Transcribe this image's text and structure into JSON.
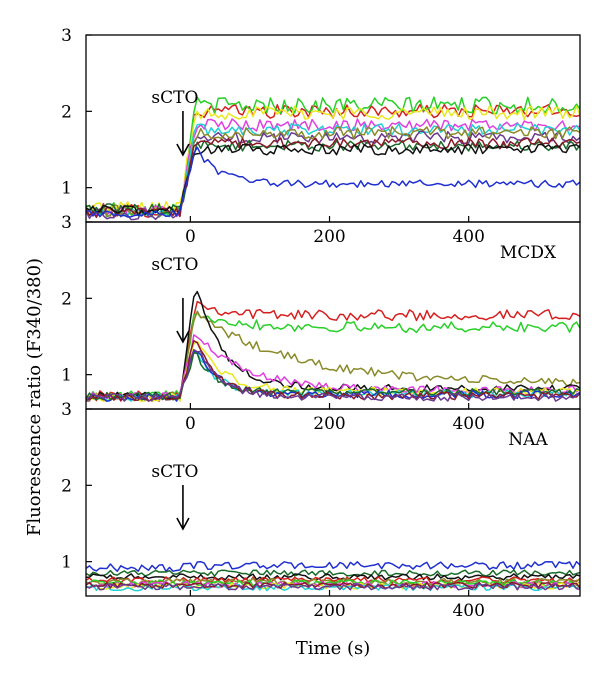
{
  "chart_data": {
    "type": "line",
    "ylabel": "Fluorescence ratio (F340/380)",
    "xlabel": "Time (s)",
    "xlim": [
      -150,
      560
    ],
    "xticks": [
      0,
      200,
      400
    ],
    "grid": false,
    "panels": [
      {
        "label": "",
        "ylim": [
          0.55,
          3
        ],
        "yticks": [
          1,
          2,
          3
        ],
        "arrow_label": "sCTO",
        "stimulus_time": -15,
        "series": [
          {
            "color": "#d62020",
            "baseline": 0.7,
            "plateau": 2.0,
            "peak": 2.0,
            "decay": 0,
            "noise": 0.09
          },
          {
            "color": "#28d028",
            "baseline": 0.72,
            "plateau": 2.08,
            "peak": 2.08,
            "decay": 0,
            "noise": 0.11
          },
          {
            "color": "#e8e820",
            "baseline": 0.74,
            "plateau": 1.98,
            "peak": 1.98,
            "decay": 0,
            "noise": 0.09
          },
          {
            "color": "#e040e0",
            "baseline": 0.7,
            "plateau": 1.82,
            "peak": 1.82,
            "decay": 0,
            "noise": 0.08
          },
          {
            "color": "#20d0d0",
            "baseline": 0.68,
            "plateau": 1.76,
            "peak": 1.76,
            "decay": 0,
            "noise": 0.08
          },
          {
            "color": "#6a3a90",
            "baseline": 0.66,
            "plateau": 1.66,
            "peak": 1.66,
            "decay": 0,
            "noise": 0.08
          },
          {
            "color": "#8a8a2a",
            "baseline": 0.7,
            "plateau": 1.72,
            "peak": 1.72,
            "decay": 0,
            "noise": 0.08
          },
          {
            "color": "#1a6a2a",
            "baseline": 0.72,
            "plateau": 1.55,
            "peak": 1.55,
            "decay": 0,
            "noise": 0.07
          },
          {
            "color": "#8a1a2a",
            "baseline": 0.68,
            "plateau": 1.58,
            "peak": 1.58,
            "decay": 0,
            "noise": 0.07
          },
          {
            "color": "#111111",
            "baseline": 0.7,
            "plateau": 1.5,
            "peak": 1.5,
            "decay": 0,
            "noise": 0.07
          },
          {
            "color": "#2030d0",
            "baseline": 0.66,
            "plateau": 1.05,
            "peak": 1.55,
            "decay": 30,
            "noise": 0.05
          }
        ]
      },
      {
        "label": "MCDX",
        "ylim": [
          0.55,
          3
        ],
        "yticks": [
          1,
          2,
          3
        ],
        "arrow_label": "sCTO",
        "stimulus_time": -15,
        "series": [
          {
            "color": "#d62020",
            "baseline": 0.72,
            "plateau": 1.78,
            "peak": 1.95,
            "decay": 40,
            "noise": 0.07
          },
          {
            "color": "#28d028",
            "baseline": 0.72,
            "plateau": 1.62,
            "peak": 1.85,
            "decay": 50,
            "noise": 0.07
          },
          {
            "color": "#8a8a2a",
            "baseline": 0.72,
            "plateau": 0.88,
            "peak": 1.8,
            "decay": 140,
            "noise": 0.06
          },
          {
            "color": "#111111",
            "baseline": 0.72,
            "plateau": 0.82,
            "peak": 2.18,
            "decay": 40,
            "noise": 0.05
          },
          {
            "color": "#e040e0",
            "baseline": 0.72,
            "plateau": 0.8,
            "peak": 1.55,
            "decay": 70,
            "noise": 0.05
          },
          {
            "color": "#e8e820",
            "baseline": 0.7,
            "plateau": 0.78,
            "peak": 1.45,
            "decay": 40,
            "noise": 0.05
          },
          {
            "color": "#20d0d0",
            "baseline": 0.7,
            "plateau": 0.75,
            "peak": 1.35,
            "decay": 30,
            "noise": 0.05
          },
          {
            "color": "#2030d0",
            "baseline": 0.7,
            "plateau": 0.74,
            "peak": 1.4,
            "decay": 30,
            "noise": 0.05
          },
          {
            "color": "#1a6a2a",
            "baseline": 0.72,
            "plateau": 0.77,
            "peak": 1.3,
            "decay": 30,
            "noise": 0.05
          },
          {
            "color": "#8a1a2a",
            "baseline": 0.7,
            "plateau": 0.72,
            "peak": 1.5,
            "decay": 30,
            "noise": 0.05
          },
          {
            "color": "#6a3a90",
            "baseline": 0.7,
            "plateau": 0.7,
            "peak": 1.4,
            "decay": 35,
            "noise": 0.05
          }
        ]
      },
      {
        "label": "NAA",
        "ylim": [
          0.55,
          3
        ],
        "yticks": [
          1,
          2,
          3
        ],
        "arrow_label": "sCTO",
        "stimulus_time": -15,
        "series": [
          {
            "color": "#2030d0",
            "baseline": 0.92,
            "plateau": 0.95,
            "peak": 0.95,
            "decay": 0,
            "noise": 0.05
          },
          {
            "color": "#1a6a2a",
            "baseline": 0.85,
            "plateau": 0.85,
            "peak": 0.85,
            "decay": 0,
            "noise": 0.04
          },
          {
            "color": "#111111",
            "baseline": 0.8,
            "plateau": 0.8,
            "peak": 0.8,
            "decay": 0,
            "noise": 0.04
          },
          {
            "color": "#d62020",
            "baseline": 0.76,
            "plateau": 0.76,
            "peak": 0.76,
            "decay": 0,
            "noise": 0.04
          },
          {
            "color": "#8a8a2a",
            "baseline": 0.74,
            "plateau": 0.74,
            "peak": 0.74,
            "decay": 0,
            "noise": 0.04
          },
          {
            "color": "#28d028",
            "baseline": 0.72,
            "plateau": 0.72,
            "peak": 0.72,
            "decay": 0,
            "noise": 0.04
          },
          {
            "color": "#e040e0",
            "baseline": 0.7,
            "plateau": 0.7,
            "peak": 0.7,
            "decay": 0,
            "noise": 0.04
          },
          {
            "color": "#e8e820",
            "baseline": 0.68,
            "plateau": 0.68,
            "peak": 0.68,
            "decay": 0,
            "noise": 0.04
          },
          {
            "color": "#20d0d0",
            "baseline": 0.66,
            "plateau": 0.66,
            "peak": 0.66,
            "decay": 0,
            "noise": 0.04
          },
          {
            "color": "#8a1a2a",
            "baseline": 0.69,
            "plateau": 0.69,
            "peak": 0.69,
            "decay": 0,
            "noise": 0.04
          },
          {
            "color": "#6a3a90",
            "baseline": 0.67,
            "plateau": 0.67,
            "peak": 0.67,
            "decay": 0,
            "noise": 0.04
          }
        ]
      }
    ]
  }
}
